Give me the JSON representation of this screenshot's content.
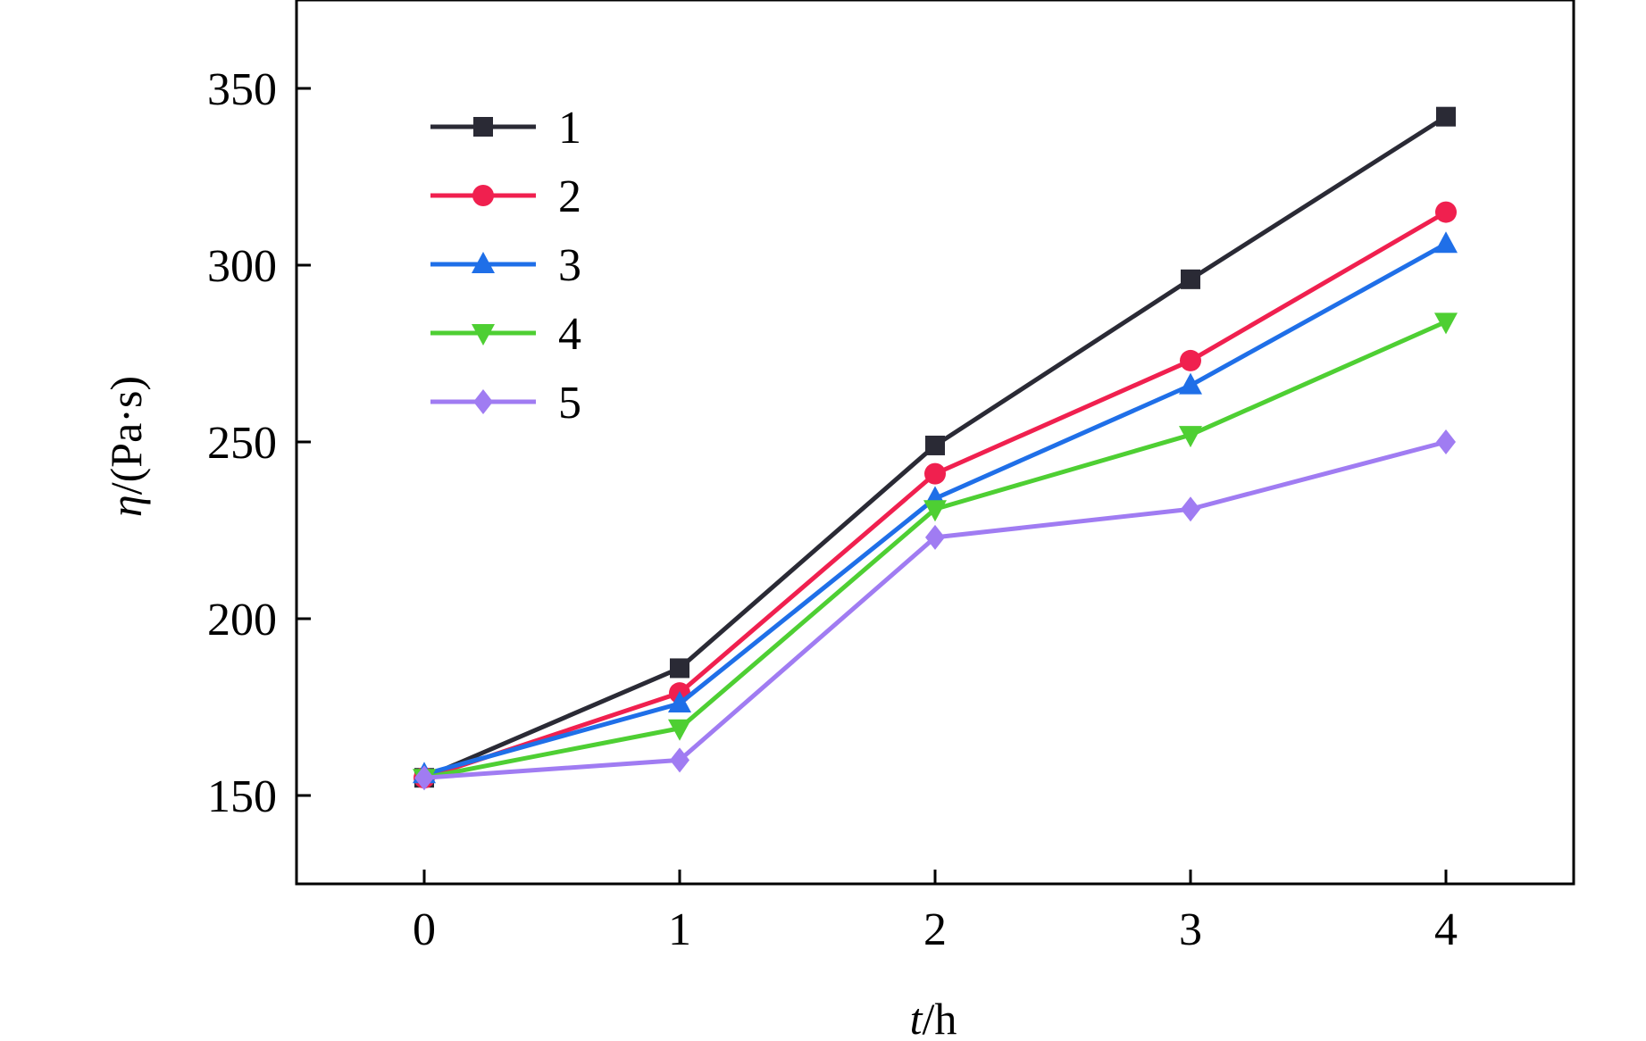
{
  "chart_data": {
    "type": "line",
    "title": "",
    "x_label": {
      "italic": "t",
      "rest": "/h"
    },
    "y_label": {
      "italic": "η",
      "rest": "/(Pa·s)"
    },
    "x": [
      0,
      1,
      2,
      3,
      4
    ],
    "x_tick_labels": [
      "0",
      "1",
      "2",
      "3",
      "4"
    ],
    "xlim": [
      -0.5,
      4.5
    ],
    "y_ticks": [
      150,
      200,
      250,
      300,
      350
    ],
    "y_tick_labels": [
      "150",
      "200",
      "250",
      "300",
      "350"
    ],
    "ylim": [
      125,
      375
    ],
    "grid": false,
    "legend_position": "top-left",
    "series": [
      {
        "name": "1",
        "color": "#2a2a35",
        "marker": "square",
        "values": [
          155,
          186,
          249,
          296,
          342
        ]
      },
      {
        "name": "2",
        "color": "#f0204f",
        "marker": "circle",
        "values": [
          155,
          179,
          241,
          273,
          315
        ]
      },
      {
        "name": "3",
        "color": "#1f6fe8",
        "marker": "triangle-up",
        "values": [
          156,
          176,
          234,
          266,
          306
        ]
      },
      {
        "name": "4",
        "color": "#4ecf33",
        "marker": "triangle-down",
        "values": [
          155,
          169,
          231,
          252,
          284
        ]
      },
      {
        "name": "5",
        "color": "#a07cf2",
        "marker": "diamond",
        "values": [
          155,
          160,
          223,
          231,
          250
        ]
      }
    ]
  }
}
